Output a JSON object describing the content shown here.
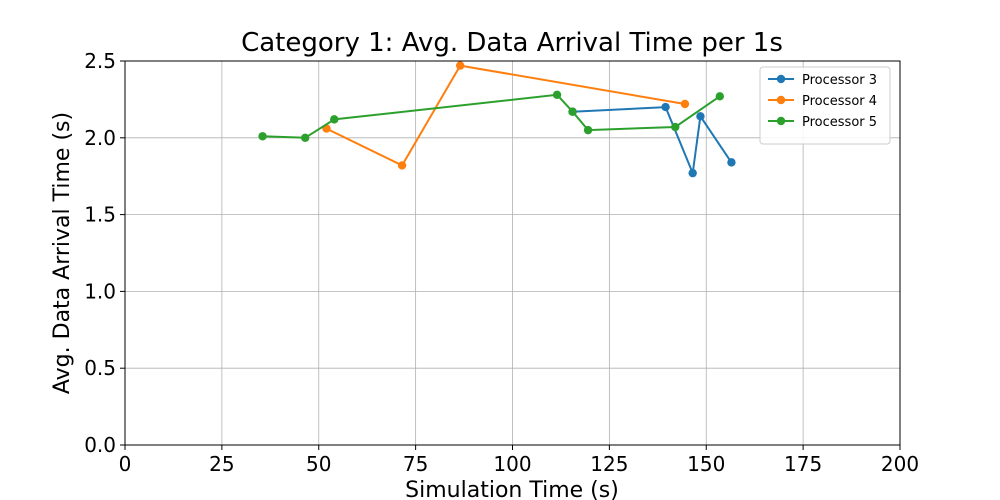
{
  "chart_data": {
    "type": "line",
    "title": "Category 1: Avg. Data Arrival Time per 1s",
    "xlabel": "Simulation Time (s)",
    "ylabel": "Avg. Data Arrival Time (s)",
    "xlim": [
      0,
      200
    ],
    "ylim": [
      0.0,
      2.5
    ],
    "xticks": [
      0,
      25,
      50,
      75,
      100,
      125,
      150,
      175,
      200
    ],
    "yticks": [
      0.0,
      0.5,
      1.0,
      1.5,
      2.0,
      2.5
    ],
    "xtick_labels": [
      "0",
      "25",
      "50",
      "75",
      "100",
      "125",
      "150",
      "175",
      "200"
    ],
    "ytick_labels": [
      "0.0",
      "0.5",
      "1.0",
      "1.5",
      "2.0",
      "2.5"
    ],
    "grid": true,
    "legend_position": "top-right",
    "series": [
      {
        "name": "Processor 3",
        "color": "#1f77b4",
        "points": [
          [
            115.5,
            2.17
          ],
          [
            139.5,
            2.2
          ],
          [
            146.5,
            1.77
          ],
          [
            148.5,
            2.14
          ],
          [
            156.5,
            1.84
          ]
        ]
      },
      {
        "name": "Processor 4",
        "color": "#ff7f0e",
        "points": [
          [
            52,
            2.06
          ],
          [
            71.5,
            1.82
          ],
          [
            86.5,
            2.47
          ],
          [
            144.5,
            2.22
          ]
        ]
      },
      {
        "name": "Processor 5",
        "color": "#2ca02c",
        "points": [
          [
            35.5,
            2.01
          ],
          [
            46.5,
            2.0
          ],
          [
            54,
            2.12
          ],
          [
            111.5,
            2.28
          ],
          [
            115.5,
            2.17
          ],
          [
            119.5,
            2.05
          ],
          [
            142,
            2.07
          ],
          [
            153.5,
            2.27
          ]
        ]
      }
    ]
  }
}
